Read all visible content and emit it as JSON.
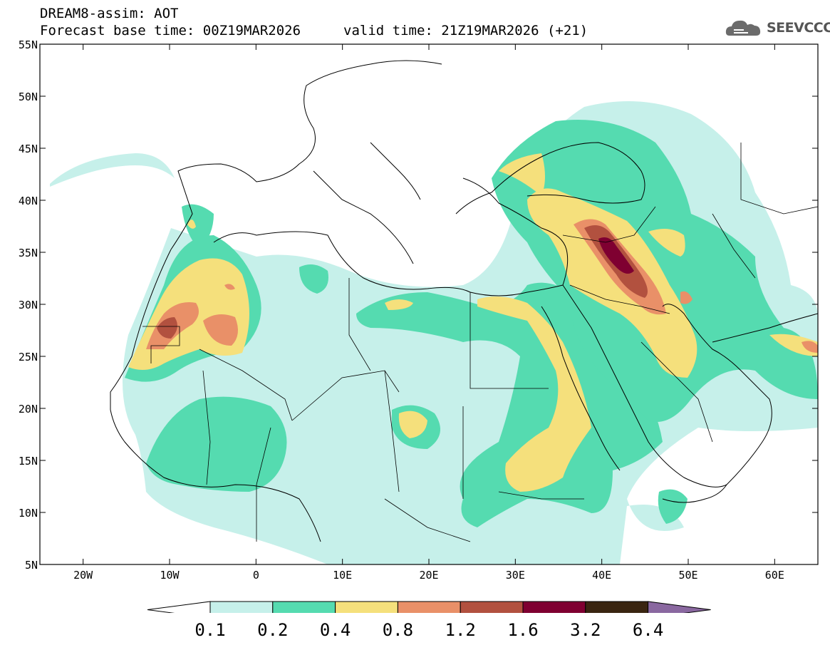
{
  "title": {
    "line1": "DREAM8-assim: AOT",
    "line2": "Forecast base time: 00Z19MAR2026",
    "valid": "valid time: 21Z19MAR2026 (+21)"
  },
  "logo": {
    "text": "SEEVCCC",
    "icon": "cloud-icon"
  },
  "axes": {
    "lat_ticks": [
      "55N",
      "50N",
      "45N",
      "40N",
      "35N",
      "30N",
      "25N",
      "20N",
      "15N",
      "10N",
      "5N"
    ],
    "lon_ticks": [
      "20W",
      "10W",
      "0",
      "10E",
      "20E",
      "30E",
      "40E",
      "50E",
      "60E"
    ],
    "lat_range": [
      5,
      55
    ],
    "lon_range": [
      -25,
      65
    ]
  },
  "colorbar": {
    "labels": [
      "0.1",
      "0.2",
      "0.4",
      "0.8",
      "1.2",
      "1.6",
      "3.2",
      "6.4"
    ],
    "colors": [
      "#ffffff",
      "#c6f0ea",
      "#55dbb0",
      "#f5e07c",
      "#e99068",
      "#b2513f",
      "#7f0031",
      "#3a2511",
      "#8a68a0"
    ]
  }
}
